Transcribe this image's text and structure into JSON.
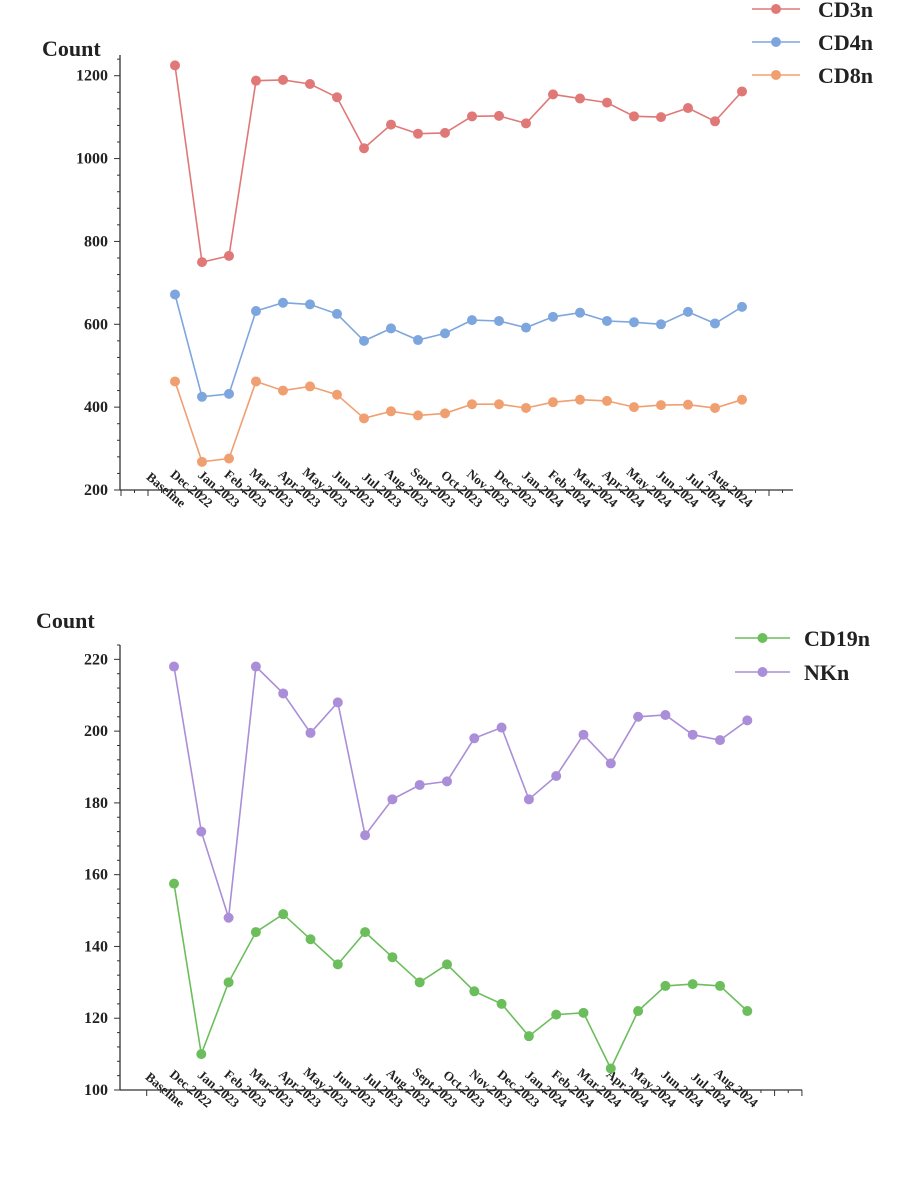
{
  "chart_data": [
    {
      "type": "line",
      "title": "",
      "ylabel": "Count",
      "xlabel": "",
      "ylim": [
        200,
        1250
      ],
      "yticks": [
        200,
        400,
        600,
        800,
        1000,
        1200
      ],
      "categories": [
        "Baseline",
        "Dec.2022",
        "Jan.2023",
        "Feb.2023",
        "Mar.2023",
        "Apr.2023",
        "May.2023",
        "Jun.2023",
        "Jul.2023",
        "Aug.2023",
        "Sept.2023",
        "Oct.2023",
        "Nov.2023",
        "Dec.2023",
        "Jan.2024",
        "Feb.2024",
        "Mar.2024",
        "Apr.2024",
        "May.2024",
        "Jun.2024",
        "Jul.2024",
        "Aug.2024"
      ],
      "legend_position": "top-right",
      "series": [
        {
          "name": "CD3n",
          "color": "#e07878",
          "values": [
            1225,
            750,
            765,
            1188,
            1190,
            1180,
            1148,
            1025,
            1082,
            1060,
            1062,
            1102,
            1103,
            1085,
            1155,
            1145,
            1135,
            1102,
            1100,
            1122,
            1090,
            1162
          ]
        },
        {
          "name": "CD4n",
          "color": "#7ea6de",
          "values": [
            672,
            425,
            432,
            632,
            652,
            648,
            625,
            560,
            590,
            562,
            578,
            610,
            608,
            592,
            618,
            628,
            608,
            605,
            600,
            630,
            602,
            642
          ]
        },
        {
          "name": "CD8n",
          "color": "#f0a070",
          "values": [
            462,
            268,
            276,
            462,
            440,
            450,
            430,
            373,
            390,
            380,
            385,
            407,
            407,
            398,
            412,
            418,
            415,
            400,
            405,
            406,
            398,
            418
          ]
        }
      ]
    },
    {
      "type": "line",
      "title": "",
      "ylabel": "Count",
      "xlabel": "",
      "ylim": [
        100,
        224
      ],
      "yticks": [
        100,
        120,
        140,
        160,
        180,
        200,
        220
      ],
      "categories": [
        "Baseline",
        "Dec.2022",
        "Jan.2023",
        "Feb.2023",
        "Mar.2023",
        "Apr.2023",
        "May.2023",
        "Jun.2023",
        "Jul.2023",
        "Aug.2023",
        "Sept.2023",
        "Oct.2023",
        "Nov.2023",
        "Dec.2023",
        "Jan.2024",
        "Feb.2024",
        "Mar.2024",
        "Apr.2024",
        "May.2024",
        "Jun.2024",
        "Jul.2024",
        "Aug.2024"
      ],
      "legend_position": "top-right",
      "series": [
        {
          "name": "CD19n",
          "color": "#6cbe5c",
          "values": [
            157.5,
            110,
            130,
            144,
            149,
            142,
            135,
            144,
            137,
            130,
            135,
            127.5,
            124,
            115,
            121,
            121.5,
            106,
            122,
            129,
            129.5,
            129,
            122
          ]
        },
        {
          "name": "NKn",
          "color": "#ab8ed8",
          "values": [
            218,
            172,
            148,
            218,
            210.5,
            199.5,
            208,
            171,
            181,
            185,
            186,
            198,
            201,
            181,
            187.5,
            199,
            191,
            204,
            204.5,
            199,
            197.5,
            203
          ]
        }
      ]
    }
  ]
}
